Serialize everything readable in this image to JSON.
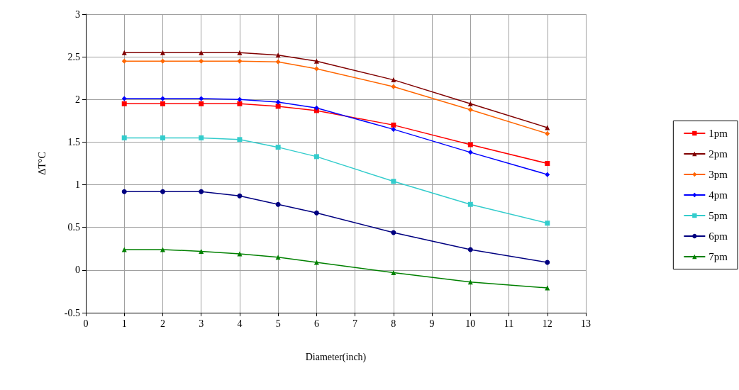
{
  "chart_data": {
    "type": "line",
    "xlabel": "Diameter(inch)",
    "ylabel": "ΔT°C",
    "x": [
      1,
      2,
      3,
      4,
      5,
      6,
      8,
      10,
      12
    ],
    "xlim": [
      0,
      13
    ],
    "xticks": [
      0,
      1,
      2,
      3,
      4,
      5,
      6,
      7,
      8,
      9,
      10,
      11,
      12,
      13
    ],
    "ylim": [
      -0.5,
      3
    ],
    "yticks": [
      -0.5,
      0,
      0.5,
      1,
      1.5,
      2,
      2.5,
      3
    ],
    "grid": true,
    "legend": "right",
    "series": [
      {
        "name": "1pm",
        "color": "#ff0000",
        "marker": "square",
        "values": [
          1.95,
          1.95,
          1.95,
          1.95,
          1.92,
          1.87,
          1.7,
          1.47,
          1.25
        ]
      },
      {
        "name": "2pm",
        "color": "#800000",
        "marker": "triangle",
        "values": [
          2.55,
          2.55,
          2.55,
          2.55,
          2.52,
          2.45,
          2.23,
          1.95,
          1.67
        ]
      },
      {
        "name": "3pm",
        "color": "#ff6600",
        "marker": "diamond",
        "values": [
          2.45,
          2.45,
          2.45,
          2.45,
          2.44,
          2.36,
          2.15,
          1.88,
          1.6
        ]
      },
      {
        "name": "4pm",
        "color": "#0000ff",
        "marker": "diamond",
        "values": [
          2.01,
          2.01,
          2.01,
          2.0,
          1.97,
          1.9,
          1.65,
          1.38,
          1.12
        ]
      },
      {
        "name": "5pm",
        "color": "#33cccc",
        "marker": "square",
        "values": [
          1.55,
          1.55,
          1.55,
          1.53,
          1.44,
          1.33,
          1.04,
          0.77,
          0.55
        ]
      },
      {
        "name": "6pm",
        "color": "#000080",
        "marker": "circle",
        "values": [
          0.92,
          0.92,
          0.92,
          0.87,
          0.77,
          0.67,
          0.44,
          0.24,
          0.09
        ]
      },
      {
        "name": "7pm",
        "color": "#008000",
        "marker": "triangle",
        "values": [
          0.24,
          0.24,
          0.22,
          0.19,
          0.15,
          0.09,
          -0.03,
          -0.14,
          -0.21
        ]
      }
    ]
  }
}
